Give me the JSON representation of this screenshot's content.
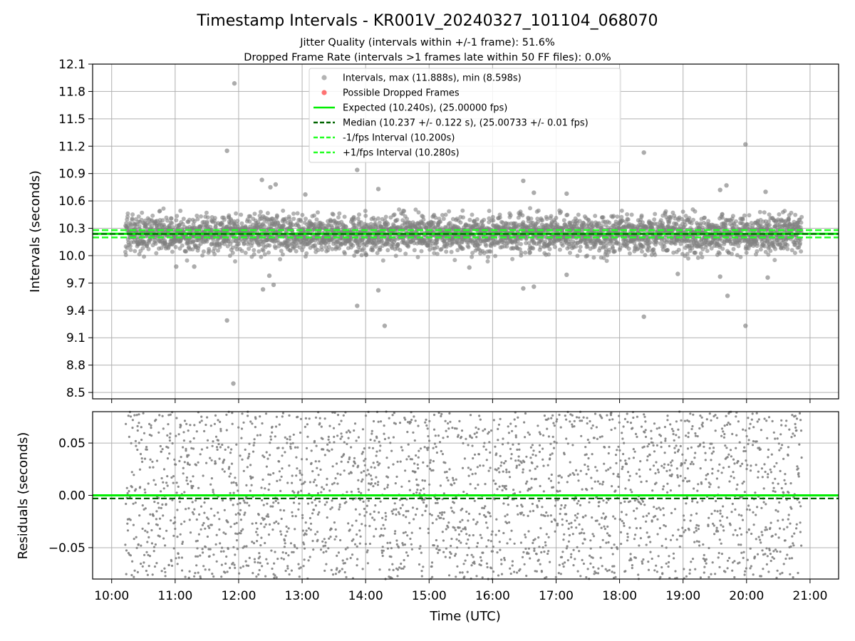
{
  "figure": {
    "title": "Timestamp Intervals - KR001V_20240327_101104_068070",
    "subtitle_1": "Jitter Quality (intervals within +/-1 frame): 51.6%",
    "subtitle_2": "Dropped Frame Rate (intervals >1 frames late within 50 FF files): 0.0%"
  },
  "colors": {
    "scatter": "#808080",
    "dropped": "#ff0000",
    "expected": "#00ee00",
    "median": "#006400",
    "interval": "#22ff22",
    "grid": "#b0b0b0"
  },
  "chart_data": [
    {
      "type": "scatter",
      "ylabel": "Intervals (seconds)",
      "xlabel": "",
      "xlim": [
        "09:42",
        "21:27"
      ],
      "ylim": [
        8.43,
        12.1
      ],
      "yticks": [
        "8.5",
        "8.8",
        "9.1",
        "9.4",
        "9.7",
        "10.0",
        "10.3",
        "10.6",
        "10.9",
        "11.2",
        "11.5",
        "11.8",
        "12.1"
      ],
      "x_time_range": [
        "10:13",
        "20:52"
      ],
      "grid": true,
      "legend_position": "top-center",
      "legend": [
        {
          "label": "Intervals, max (11.888s), min (8.598s)",
          "kind": "marker",
          "color": "#808080"
        },
        {
          "label": "Possible Dropped Frames",
          "kind": "marker",
          "color": "#ff0000"
        },
        {
          "label": "Expected (10.240s), (25.00000 fps)",
          "kind": "solid",
          "color": "#00ee00"
        },
        {
          "label": "Median (10.237 +/- 0.122 s), (25.00733 +/- 0.01 fps)",
          "kind": "dashed",
          "color": "#006400"
        },
        {
          "label": "-1/fps Interval (10.200s)",
          "kind": "dashed",
          "color": "#22ff22"
        },
        {
          "label": "+1/fps Interval (10.280s)",
          "kind": "dashed",
          "color": "#22ff22"
        }
      ],
      "series": [
        {
          "name": "Intervals, max (11.888s), min (8.598s)",
          "bulk_mean": 10.24,
          "bulk_sd": 0.1,
          "count": 3600
        },
        {
          "name": "Possible Dropped Frames",
          "count": 0
        }
      ],
      "hlines": [
        {
          "label": "Expected (10.240s), (25.00000 fps)",
          "y": 10.24,
          "style": "solid"
        },
        {
          "label": "Median (10.237 +/- 0.122 s), (25.00733 +/- 0.01 fps)",
          "y": 10.237,
          "style": "dashed"
        },
        {
          "label": "-1/fps Interval (10.200s)",
          "y": 10.2,
          "style": "dashed"
        },
        {
          "label": "+1/fps Interval (10.280s)",
          "y": 10.28,
          "style": "dashed"
        }
      ],
      "outliers": [
        {
          "x": "11:56",
          "y": 11.888
        },
        {
          "x": "11:55",
          "y": 8.598
        },
        {
          "x": "11:49",
          "y": 11.15
        },
        {
          "x": "11:49",
          "y": 9.29
        },
        {
          "x": "13:52",
          "y": 10.94
        },
        {
          "x": "13:52",
          "y": 9.45
        },
        {
          "x": "14:18",
          "y": 9.23
        },
        {
          "x": "14:12",
          "y": 10.73
        },
        {
          "x": "14:12",
          "y": 9.62
        },
        {
          "x": "12:22",
          "y": 10.83
        },
        {
          "x": "12:30",
          "y": 10.75
        },
        {
          "x": "12:35",
          "y": 10.78
        },
        {
          "x": "12:23",
          "y": 9.63
        },
        {
          "x": "12:33",
          "y": 9.68
        },
        {
          "x": "12:29",
          "y": 9.78
        },
        {
          "x": "13:03",
          "y": 10.67
        },
        {
          "x": "16:29",
          "y": 10.82
        },
        {
          "x": "16:39",
          "y": 10.69
        },
        {
          "x": "16:29",
          "y": 9.64
        },
        {
          "x": "16:39",
          "y": 9.66
        },
        {
          "x": "17:10",
          "y": 10.68
        },
        {
          "x": "17:10",
          "y": 9.79
        },
        {
          "x": "18:23",
          "y": 11.13
        },
        {
          "x": "18:23",
          "y": 9.33
        },
        {
          "x": "19:59",
          "y": 11.22
        },
        {
          "x": "19:59",
          "y": 9.23
        },
        {
          "x": "19:35",
          "y": 10.72
        },
        {
          "x": "19:41",
          "y": 10.77
        },
        {
          "x": "19:42",
          "y": 9.56
        },
        {
          "x": "20:18",
          "y": 10.7
        },
        {
          "x": "20:20",
          "y": 9.76
        },
        {
          "x": "19:35",
          "y": 9.77
        },
        {
          "x": "18:55",
          "y": 9.8
        },
        {
          "x": "11:18",
          "y": 9.88
        },
        {
          "x": "11:01",
          "y": 9.88
        },
        {
          "x": "15:38",
          "y": 9.87
        }
      ]
    },
    {
      "type": "scatter",
      "ylabel": "Residuals (seconds)",
      "xlabel": "Time (UTC)",
      "xlim": [
        "09:42",
        "21:27"
      ],
      "ylim": [
        -0.08,
        0.08
      ],
      "yticks": [
        "−0.05",
        "0.00",
        "0.05"
      ],
      "xticks": [
        "10:00",
        "11:00",
        "12:00",
        "13:00",
        "14:00",
        "15:00",
        "16:00",
        "17:00",
        "18:00",
        "19:00",
        "20:00",
        "21:00"
      ],
      "x_time_range": [
        "10:13",
        "20:52"
      ],
      "grid": true,
      "series": [
        {
          "name": "",
          "distribution": "uniform",
          "range": [
            -0.08,
            0.08
          ],
          "count": 2600
        }
      ],
      "hlines": [
        {
          "y": 0.0,
          "style": "solid"
        },
        {
          "y": -0.003,
          "style": "dashed"
        }
      ]
    }
  ]
}
